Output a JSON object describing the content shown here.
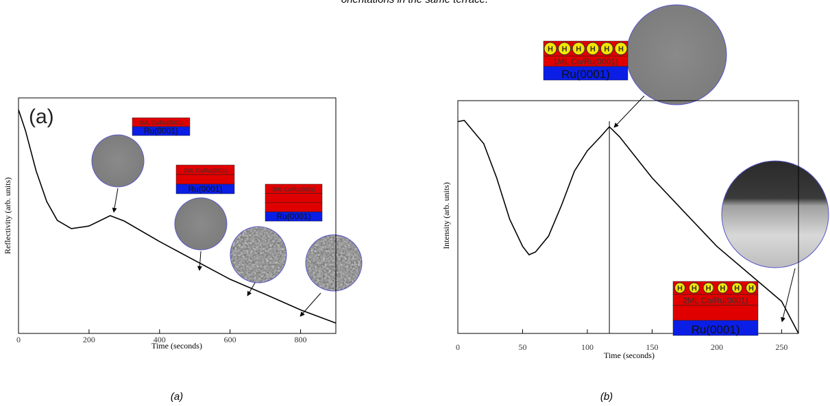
{
  "caption": "orientations in the same terrace.",
  "subfigure_labels": [
    "(a)",
    "(b)"
  ],
  "chart_data": [
    {
      "type": "line",
      "panel_label": "(a)",
      "x_label": "Time (seconds)",
      "y_label": "Reflectivity (arb. units)",
      "x": [
        0,
        20,
        50,
        80,
        110,
        150,
        200,
        260,
        300,
        400,
        500,
        600,
        700,
        800,
        900
      ],
      "values": [
        0.95,
        0.86,
        0.69,
        0.56,
        0.48,
        0.445,
        0.456,
        0.5,
        0.477,
        0.39,
        0.31,
        0.23,
        0.166,
        0.1,
        0.044
      ],
      "color": "#000000",
      "xlim": [
        0,
        900
      ],
      "xticks": [
        0,
        200,
        400,
        600,
        800
      ],
      "ylim": [
        0,
        1
      ],
      "stacks": [
        {
          "layers": [
            "1ML Co/Ru(0001)",
            "Ru(0001)"
          ]
        },
        {
          "layers": [
            "2ML Co/Ru(0001)",
            "Ru(0001)"
          ]
        },
        {
          "layers": [
            "3ML Co/Ru(0001)",
            "Ru(0001)"
          ]
        }
      ]
    },
    {
      "type": "line",
      "x_label": "Time (seconds)",
      "y_label": "Intensity (arb. units)",
      "x": [
        0,
        5,
        20,
        30,
        40,
        50,
        55,
        60,
        70,
        80,
        90,
        100,
        110,
        117,
        125,
        150,
        175,
        200,
        225,
        250,
        263
      ],
      "values": [
        0.91,
        0.915,
        0.815,
        0.668,
        0.491,
        0.374,
        0.338,
        0.35,
        0.418,
        0.55,
        0.697,
        0.785,
        0.844,
        0.888,
        0.844,
        0.668,
        0.521,
        0.374,
        0.256,
        0.138,
        0.0
      ],
      "color": "#000000",
      "vline": 117,
      "xlim": [
        0,
        263
      ],
      "xticks": [
        0,
        50,
        100,
        150,
        200,
        250
      ],
      "ylim": [
        0,
        1
      ],
      "stacks": [
        {
          "adsorbates": [
            "H",
            "H",
            "H",
            "H",
            "H",
            "H"
          ],
          "layers": [
            "1ML Co/Ru(0001)",
            "Ru(0001)"
          ]
        },
        {
          "adsorbates": [
            "H",
            "H",
            "H",
            "H",
            "H",
            "H"
          ],
          "layers": [
            "2ML Co/Ru(0001)",
            "Ru(0001)"
          ]
        }
      ]
    }
  ]
}
